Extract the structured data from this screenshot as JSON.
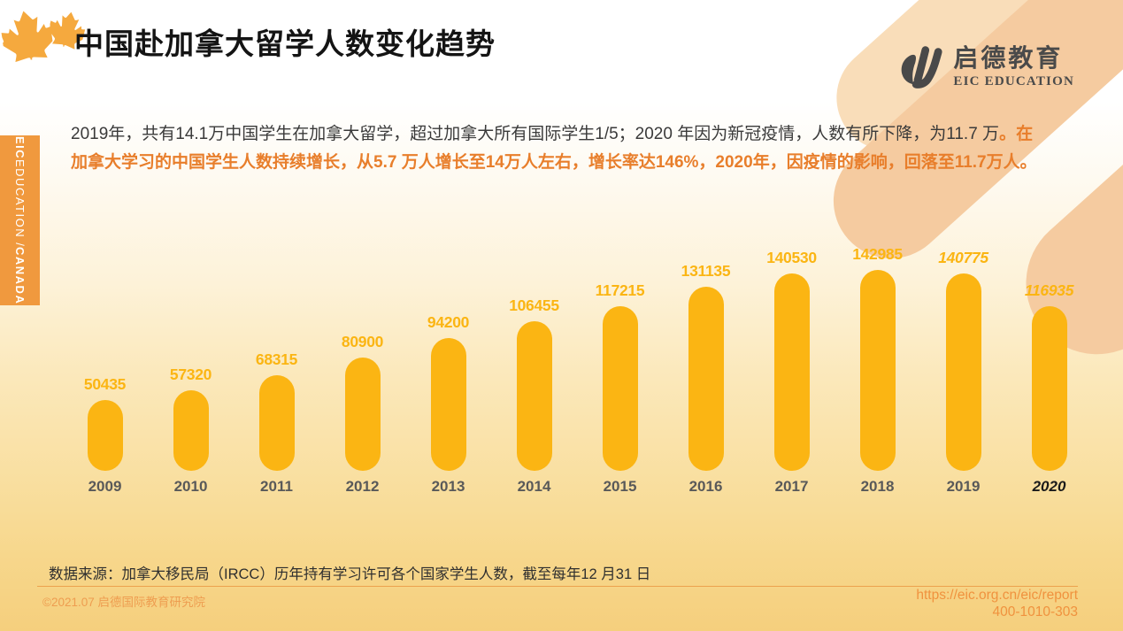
{
  "title": "中国赴加拿大留学人数变化趋势",
  "logo": {
    "cn": "启德教育",
    "en": "EIC EDUCATION"
  },
  "sidebar": {
    "part1": "EIC",
    "part2": " EDUCATION / ",
    "part3": "CANADA"
  },
  "intro": {
    "segment_black": "2019年，共有14.1万中国学生在加拿大留学，超过加拿大所有国际学生1/5；2020 年因为新冠疫情，人数有所下降，为11.7 万",
    "segment_orange": "。在加拿大学习的中国学生人数持续增长，从5.7 万人增长至14万人左右，增长率达146%，2020年，因疫情的影响，回落至11.7万人。"
  },
  "chart_data": {
    "type": "bar",
    "title": "",
    "xlabel": "",
    "ylabel": "",
    "categories": [
      "2009",
      "2010",
      "2011",
      "2012",
      "2013",
      "2014",
      "2015",
      "2016",
      "2017",
      "2018",
      "2019",
      "2020"
    ],
    "values": [
      50435,
      57320,
      68315,
      80900,
      94200,
      106455,
      117215,
      131135,
      140530,
      142985,
      140775,
      116935
    ],
    "ylim": [
      0,
      150000
    ],
    "grid": false,
    "legend": false,
    "data_labels": true,
    "italic_value_indices": [
      10,
      11
    ],
    "italic_category_indices": [
      11
    ]
  },
  "source_note": "数据来源：加拿大移民局（IRCC）历年持有学习许可各个国家学生人数，截至每年12 月31 日",
  "footer": {
    "copyright": "©2021.07 启德国际教育研究院",
    "url": "https://eic.org.cn/eic/report",
    "phone": "400-1010-303"
  },
  "colors": {
    "bar_yellow": "#FBB513",
    "accent_orange": "#E87E2B",
    "sidebar_orange": "#F0993E",
    "leaf_orange": "#F5A93E",
    "deco_peach": "#F5CBA0",
    "deco_peach_light": "#F9DDB9",
    "divider_orange": "#ECA14D",
    "footer_orange": "#EE9D50",
    "url_orange": "#F0923E"
  }
}
